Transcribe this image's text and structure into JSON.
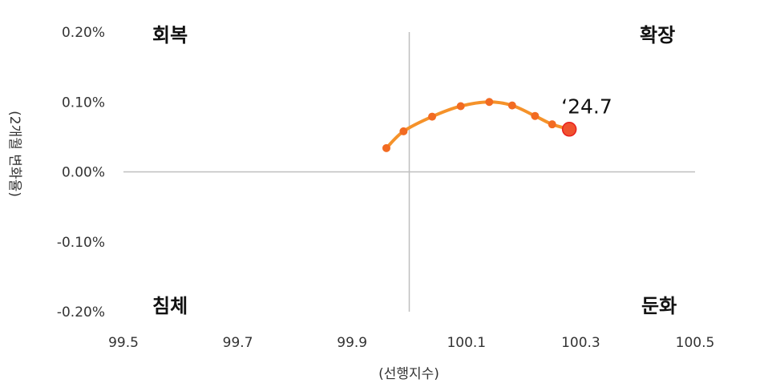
{
  "chart_data": {
    "type": "scatter",
    "title": "",
    "xlabel": "(선행지수)",
    "ylabel": "(2개월 변화율)",
    "xlim": [
      99.5,
      100.5
    ],
    "ylim": [
      -0.2,
      0.2
    ],
    "x_ticks": [
      "99.5",
      "99.7",
      "99.9",
      "100.1",
      "100.3",
      "100.5"
    ],
    "y_ticks": [
      "0.20%",
      "0.10%",
      "0.00%",
      "-0.10%",
      "-0.20%"
    ],
    "grid": false,
    "quadrants": {
      "top_left": "회복",
      "top_right": "확장",
      "bottom_left": "침체",
      "bottom_right": "둔화"
    },
    "series": [
      {
        "x": [
          99.96,
          99.99,
          100.04,
          100.09,
          100.14,
          100.18,
          100.22,
          100.25,
          100.28
        ],
        "y": [
          0.034,
          0.058,
          0.079,
          0.094,
          0.1,
          0.095,
          0.08,
          0.068,
          0.061
        ]
      }
    ],
    "annotation": {
      "text": "‘24.7",
      "x": 100.28,
      "y": 0.061
    },
    "colors": {
      "line": "#F5922A",
      "point": "#F26B22",
      "highlight_fill": "#F0522F",
      "highlight_stroke": "#E8201E",
      "axis": "#BFBFBF"
    }
  }
}
